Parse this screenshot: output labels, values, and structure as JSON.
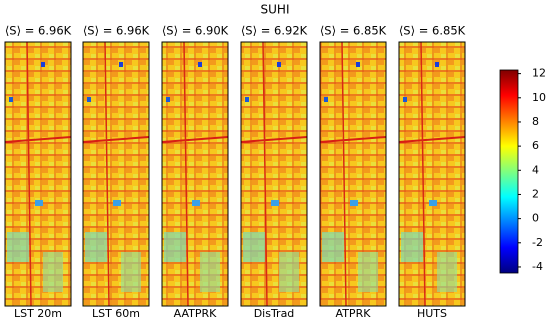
{
  "chart_data": {
    "type": "image-grid",
    "title": "SUHI",
    "panels": [
      {
        "title": "⟨S⟩ = 6.96K",
        "label": "LST 20m"
      },
      {
        "title": "⟨S⟩ = 6.96K",
        "label": "LST 60m"
      },
      {
        "title": "⟨S⟩ = 6.90K",
        "label": "AATPRK"
      },
      {
        "title": "⟨S⟩ = 6.92K",
        "label": "DisTrad"
      },
      {
        "title": "⟨S⟩ = 6.85K",
        "label": "ATPRK"
      },
      {
        "title": "⟨S⟩ = 6.85K",
        "label": "HUTS"
      }
    ],
    "colorbar": {
      "colormap": "jet",
      "ylim": [
        -4.5,
        12.3
      ],
      "yticks": [
        -4,
        -2,
        0,
        2,
        4,
        6,
        8,
        10,
        12
      ]
    }
  }
}
